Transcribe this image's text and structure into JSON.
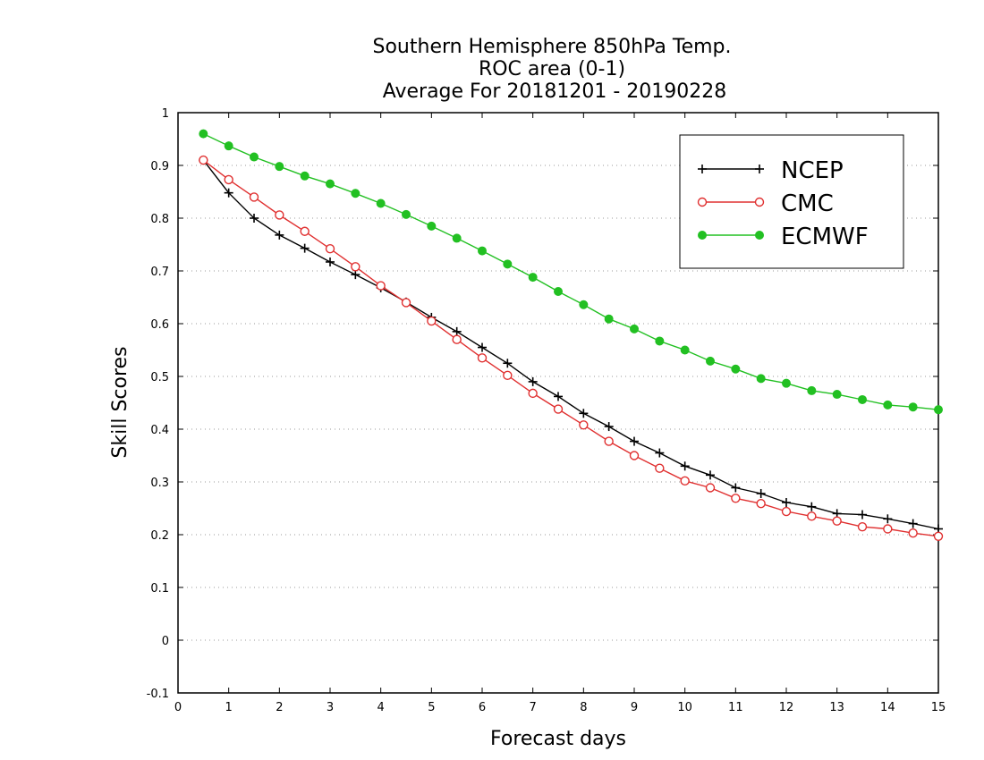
{
  "chart_data": {
    "type": "line",
    "title_lines": [
      "Southern Hemisphere 850hPa Temp.",
      "ROC area (0-1)",
      "Average For 20181201 - 20190228"
    ],
    "xlabel": "Forecast days",
    "ylabel": "Skill Scores",
    "xlim": [
      0,
      15
    ],
    "ylim": [
      -0.1,
      1
    ],
    "x_ticks": [
      0,
      1,
      2,
      3,
      4,
      5,
      6,
      7,
      8,
      9,
      10,
      11,
      12,
      13,
      14,
      15
    ],
    "x_tick_labels": [
      "0",
      "1",
      "2",
      "3",
      "4",
      "5",
      "6",
      "7",
      "8",
      "9",
      "10",
      "11",
      "12",
      "13",
      "14",
      "15"
    ],
    "y_ticks": [
      -0.1,
      0,
      0.1,
      0.2,
      0.3,
      0.4,
      0.5,
      0.6,
      0.7,
      0.8,
      0.9,
      1
    ],
    "y_tick_labels": [
      "-0.1",
      "0",
      "0.1",
      "0.2",
      "0.3",
      "0.4",
      "0.5",
      "0.6",
      "0.7",
      "0.8",
      "0.9",
      "1"
    ],
    "grid": "horizontal dotted",
    "legend_position": "top-right",
    "x": [
      0.5,
      1.0,
      1.5,
      2.0,
      2.5,
      3.0,
      3.5,
      4.0,
      4.5,
      5.0,
      5.5,
      6.0,
      6.5,
      7.0,
      7.5,
      8.0,
      8.5,
      9.0,
      9.5,
      10.0,
      10.5,
      11.0,
      11.5,
      12.0,
      12.5,
      13.0,
      13.5,
      14.0,
      14.5,
      15.0
    ],
    "series": [
      {
        "name": "NCEP",
        "color": "#000000",
        "marker": "plus",
        "values": [
          0.91,
          0.848,
          0.8,
          0.768,
          0.743,
          0.717,
          0.693,
          0.668,
          0.641,
          0.612,
          0.585,
          0.555,
          0.525,
          0.49,
          0.462,
          0.43,
          0.405,
          0.377,
          0.355,
          0.33,
          0.313,
          0.289,
          0.278,
          0.261,
          0.253,
          0.24,
          0.238,
          0.23,
          0.221,
          0.211
        ]
      },
      {
        "name": "CMC",
        "color": "#e03030",
        "marker": "open-circle",
        "values": [
          0.91,
          0.873,
          0.84,
          0.806,
          0.775,
          0.742,
          0.708,
          0.672,
          0.64,
          0.605,
          0.57,
          0.535,
          0.502,
          0.468,
          0.438,
          0.408,
          0.377,
          0.35,
          0.326,
          0.302,
          0.289,
          0.269,
          0.259,
          0.244,
          0.235,
          0.226,
          0.215,
          0.211,
          0.203,
          0.197
        ]
      },
      {
        "name": "ECMWF",
        "color": "#22c022",
        "marker": "filled-circle",
        "values": [
          0.96,
          0.937,
          0.916,
          0.898,
          0.88,
          0.865,
          0.847,
          0.828,
          0.807,
          0.785,
          0.762,
          0.738,
          0.713,
          0.688,
          0.661,
          0.636,
          0.609,
          0.59,
          0.567,
          0.55,
          0.529,
          0.514,
          0.496,
          0.487,
          0.473,
          0.466,
          0.456,
          0.446,
          0.442,
          0.437
        ]
      }
    ]
  }
}
